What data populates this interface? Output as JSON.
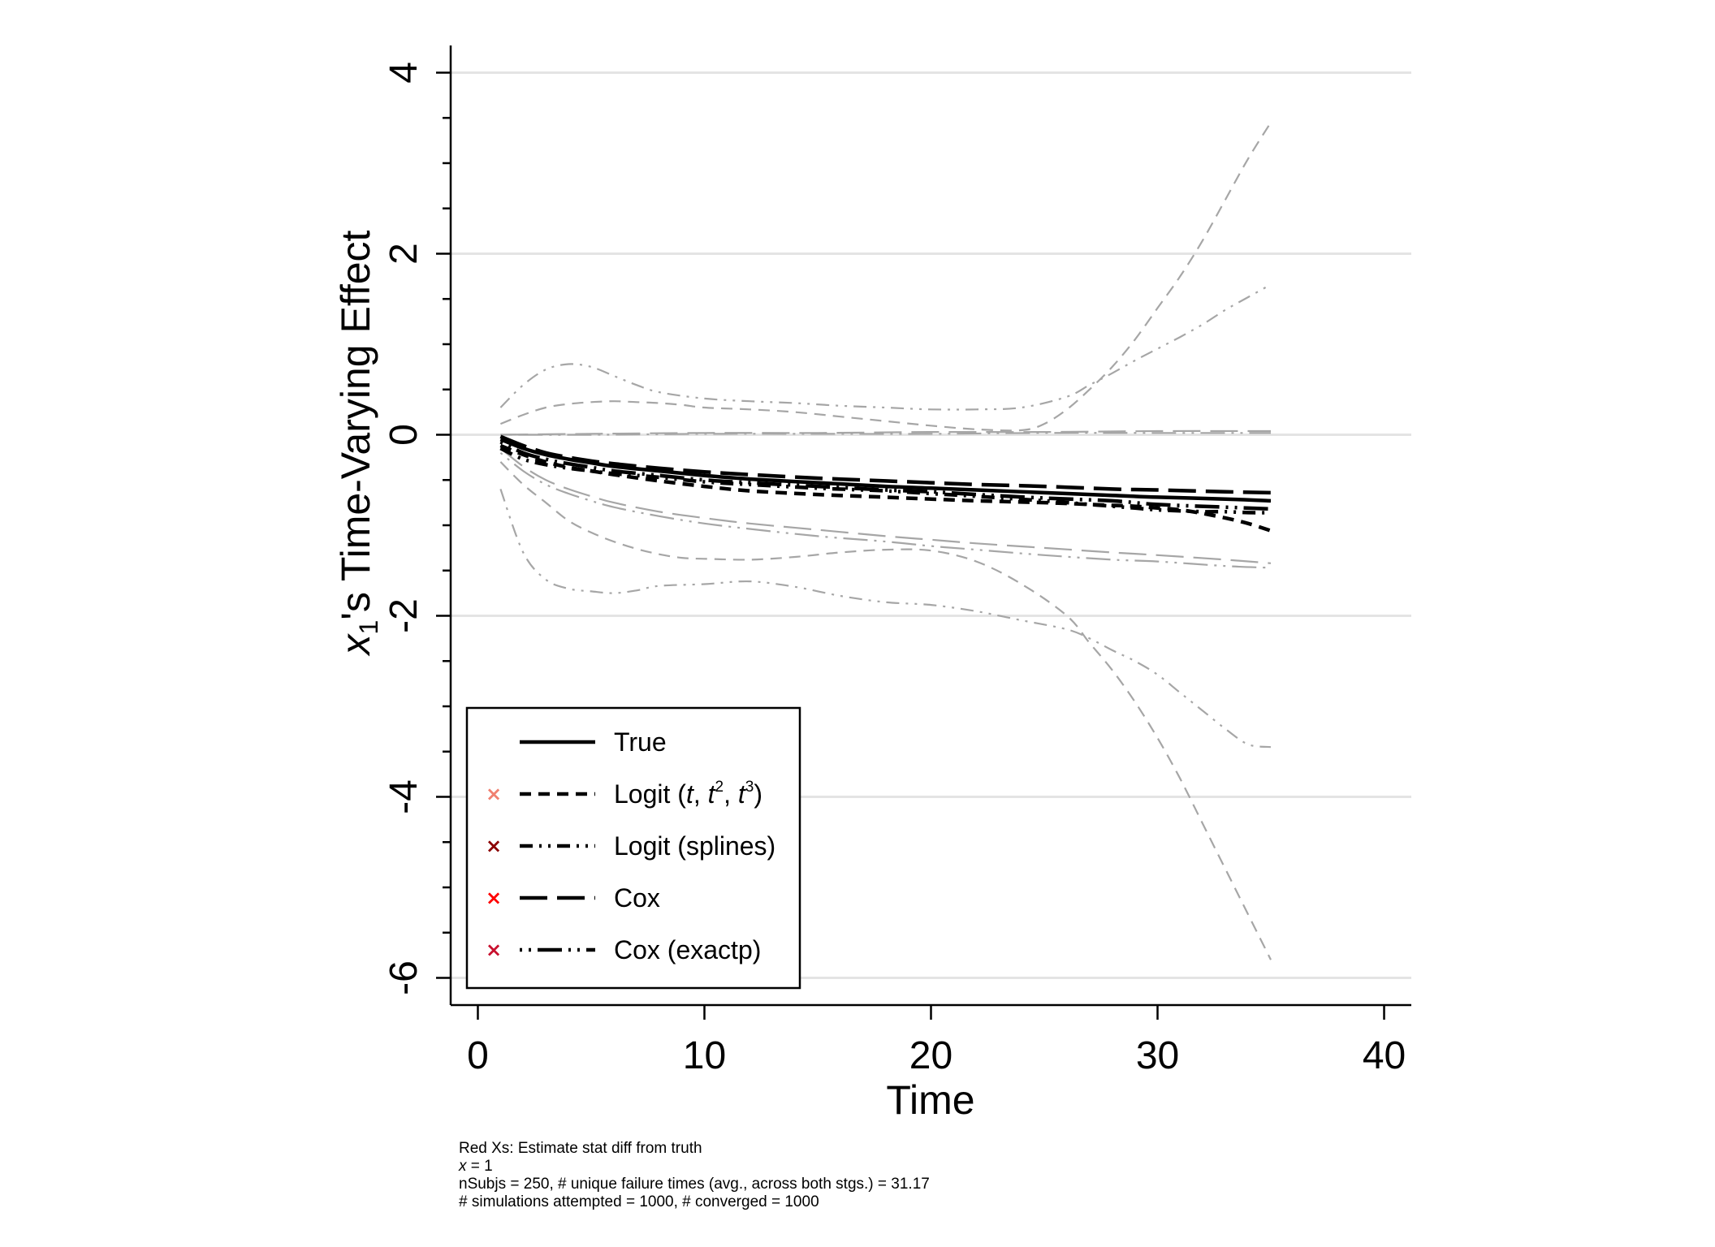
{
  "chart_data": {
    "type": "line",
    "title": "",
    "xlabel": "Time",
    "ylabel": {
      "prefix": "x",
      "subscript": "1",
      "suffix": "'s Time-Varying Effect"
    },
    "xlim": [
      -1.2,
      41.2
    ],
    "ylim": [
      -6.3,
      4.3
    ],
    "xticks": [
      0,
      10,
      20,
      30,
      40
    ],
    "xtick_labels": [
      "0",
      "10",
      "20",
      "30",
      "40"
    ],
    "yticks": [
      -6,
      -4,
      -2,
      0,
      2,
      4
    ],
    "ytick_labels": [
      "-6",
      "-4",
      "-2",
      "0",
      "2",
      "4"
    ],
    "y_minor_step": 0.5,
    "grid": true,
    "legend_position": "bottom-left",
    "series": [
      {
        "id": "ci-logit-upper",
        "style": "short-dash",
        "color": "#a6a6a6",
        "x": [
          1,
          2,
          3,
          4,
          5,
          6,
          7,
          8,
          9,
          10,
          12,
          14,
          16,
          18,
          20,
          22,
          24,
          25,
          26,
          27,
          28,
          29,
          30,
          31,
          32,
          33,
          34,
          35
        ],
        "y": [
          0.12,
          0.22,
          0.3,
          0.34,
          0.36,
          0.37,
          0.36,
          0.35,
          0.33,
          0.3,
          0.28,
          0.25,
          0.2,
          0.15,
          0.1,
          0.06,
          0.05,
          0.12,
          0.28,
          0.5,
          0.75,
          1.05,
          1.4,
          1.75,
          2.15,
          2.6,
          3.05,
          3.45
        ]
      },
      {
        "id": "ci-logit-lower",
        "style": "short-dash",
        "color": "#a6a6a6",
        "x": [
          1,
          2,
          3,
          4,
          5,
          6,
          7,
          8,
          9,
          10,
          12,
          14,
          16,
          18,
          20,
          22,
          24,
          26,
          27,
          28,
          29,
          30,
          31,
          32,
          33,
          34,
          35
        ],
        "y": [
          -0.3,
          -0.55,
          -0.75,
          -0.95,
          -1.08,
          -1.18,
          -1.26,
          -1.32,
          -1.36,
          -1.37,
          -1.38,
          -1.35,
          -1.3,
          -1.27,
          -1.28,
          -1.4,
          -1.65,
          -2.0,
          -2.3,
          -2.6,
          -2.95,
          -3.35,
          -3.8,
          -4.3,
          -4.8,
          -5.3,
          -5.8
        ]
      },
      {
        "id": "ci-splines-upper",
        "style": "dash-dot-dot",
        "color": "#a6a6a6",
        "x": [
          1,
          2,
          3,
          4,
          5,
          6,
          7,
          8,
          10,
          12,
          14,
          16,
          18,
          20,
          22,
          24,
          26,
          27,
          28,
          29,
          30,
          31,
          32,
          33,
          34,
          35
        ],
        "y": [
          0.3,
          0.55,
          0.72,
          0.78,
          0.75,
          0.65,
          0.55,
          0.47,
          0.4,
          0.37,
          0.35,
          0.32,
          0.3,
          0.28,
          0.28,
          0.3,
          0.42,
          0.55,
          0.68,
          0.82,
          0.95,
          1.08,
          1.22,
          1.38,
          1.52,
          1.66
        ]
      },
      {
        "id": "ci-splines-lower",
        "style": "dash-dot-dot",
        "color": "#a6a6a6",
        "x": [
          1,
          2,
          3,
          4,
          5,
          6,
          7,
          8,
          10,
          12,
          14,
          16,
          18,
          20,
          22,
          24,
          26,
          27,
          28,
          29,
          30,
          31,
          32,
          33,
          34,
          35
        ],
        "y": [
          -0.6,
          -1.3,
          -1.6,
          -1.7,
          -1.73,
          -1.75,
          -1.72,
          -1.67,
          -1.65,
          -1.62,
          -1.68,
          -1.78,
          -1.85,
          -1.88,
          -1.95,
          -2.05,
          -2.15,
          -2.25,
          -2.38,
          -2.5,
          -2.65,
          -2.85,
          -3.05,
          -3.25,
          -3.42,
          -3.45
        ]
      },
      {
        "id": "ci-cox-upper",
        "style": "long-dash",
        "color": "#a6a6a6",
        "x": [
          1,
          5,
          10,
          15,
          20,
          25,
          30,
          35
        ],
        "y": [
          0.0,
          0.01,
          0.02,
          0.02,
          0.03,
          0.03,
          0.04,
          0.04
        ]
      },
      {
        "id": "ci-cox-lower",
        "style": "long-dash",
        "color": "#a6a6a6",
        "x": [
          1,
          2,
          3,
          4,
          5,
          6,
          8,
          10,
          12,
          15,
          18,
          20,
          22,
          25,
          28,
          30,
          33,
          35
        ],
        "y": [
          -0.15,
          -0.35,
          -0.5,
          -0.6,
          -0.68,
          -0.75,
          -0.85,
          -0.92,
          -0.98,
          -1.05,
          -1.12,
          -1.16,
          -1.2,
          -1.25,
          -1.3,
          -1.33,
          -1.38,
          -1.42
        ]
      },
      {
        "id": "ci-coxexact-upper",
        "style": "dot-longdash",
        "color": "#a6a6a6",
        "x": [
          1,
          5,
          10,
          15,
          20,
          25,
          30,
          35
        ],
        "y": [
          0.0,
          0.0,
          0.01,
          0.01,
          0.01,
          0.02,
          0.02,
          0.02
        ]
      },
      {
        "id": "ci-coxexact-lower",
        "style": "dot-longdash",
        "color": "#a6a6a6",
        "x": [
          1,
          2,
          3,
          4,
          5,
          6,
          8,
          10,
          12,
          15,
          18,
          20,
          22,
          25,
          28,
          30,
          33,
          35
        ],
        "y": [
          -0.2,
          -0.4,
          -0.55,
          -0.65,
          -0.73,
          -0.8,
          -0.9,
          -0.98,
          -1.04,
          -1.12,
          -1.18,
          -1.23,
          -1.27,
          -1.33,
          -1.38,
          -1.4,
          -1.45,
          -1.47
        ]
      },
      {
        "id": "cox-exactp",
        "name": "Cox (exactp)",
        "style": "dot-longdash",
        "color": "#000000",
        "x": [
          1,
          2,
          3,
          4,
          5,
          6,
          8,
          10,
          12,
          15,
          18,
          20,
          22,
          25,
          28,
          30,
          33,
          35
        ],
        "y": [
          -0.08,
          -0.2,
          -0.27,
          -0.32,
          -0.36,
          -0.4,
          -0.45,
          -0.5,
          -0.53,
          -0.57,
          -0.61,
          -0.63,
          -0.66,
          -0.7,
          -0.73,
          -0.77,
          -0.8,
          -0.82
        ]
      },
      {
        "id": "cox",
        "name": "Cox",
        "style": "long-dash",
        "color": "#000000",
        "x": [
          1,
          2,
          3,
          4,
          5,
          6,
          8,
          10,
          12,
          15,
          18,
          20,
          22,
          25,
          28,
          30,
          33,
          35
        ],
        "y": [
          -0.02,
          -0.12,
          -0.2,
          -0.25,
          -0.29,
          -0.32,
          -0.37,
          -0.41,
          -0.44,
          -0.48,
          -0.51,
          -0.53,
          -0.55,
          -0.57,
          -0.6,
          -0.61,
          -0.63,
          -0.64
        ]
      },
      {
        "id": "logit-splines",
        "name": "Logit (splines)",
        "style": "dash-dot-dot",
        "color": "#000000",
        "x": [
          1,
          2,
          3,
          4,
          5,
          6,
          8,
          10,
          12,
          15,
          18,
          20,
          22,
          25,
          27,
          28,
          29,
          30,
          31,
          32,
          33,
          34,
          35
        ],
        "y": [
          -0.15,
          -0.27,
          -0.33,
          -0.37,
          -0.4,
          -0.43,
          -0.47,
          -0.52,
          -0.55,
          -0.59,
          -0.62,
          -0.65,
          -0.68,
          -0.73,
          -0.77,
          -0.79,
          -0.81,
          -0.83,
          -0.84,
          -0.85,
          -0.85,
          -0.86,
          -0.86
        ]
      },
      {
        "id": "logit-poly",
        "name": "Logit (t, t², t³)",
        "style": "short-dash",
        "color": "#000000",
        "x": [
          1,
          2,
          3,
          4,
          5,
          6,
          8,
          10,
          12,
          15,
          18,
          20,
          22,
          25,
          27,
          28,
          29,
          30,
          31,
          32,
          33,
          34,
          35
        ],
        "y": [
          -0.12,
          -0.22,
          -0.3,
          -0.36,
          -0.4,
          -0.44,
          -0.51,
          -0.57,
          -0.62,
          -0.66,
          -0.69,
          -0.71,
          -0.73,
          -0.75,
          -0.77,
          -0.78,
          -0.79,
          -0.81,
          -0.83,
          -0.87,
          -0.92,
          -0.98,
          -1.06
        ]
      },
      {
        "id": "true",
        "name": "True",
        "style": "solid",
        "color": "#000000",
        "x": [
          1,
          2,
          3,
          4,
          5,
          6,
          8,
          10,
          12,
          15,
          18,
          20,
          22,
          25,
          28,
          30,
          33,
          35
        ],
        "y": [
          -0.05,
          -0.15,
          -0.22,
          -0.27,
          -0.31,
          -0.35,
          -0.4,
          -0.45,
          -0.49,
          -0.53,
          -0.57,
          -0.59,
          -0.61,
          -0.64,
          -0.67,
          -0.69,
          -0.71,
          -0.73
        ]
      }
    ],
    "legend": {
      "items": [
        {
          "series": "true",
          "label": "True",
          "marker_color": null
        },
        {
          "series": "logit-poly",
          "label": "Logit (t, t², t³)",
          "marker_color": "#f08070",
          "rich": {
            "a": "Logit (",
            "t1": "t",
            "c1": ", ",
            "t2": "t",
            "s2": "2",
            "c2": ", ",
            "t3": "t",
            "s3": "3",
            "z": ")"
          }
        },
        {
          "series": "logit-splines",
          "label": "Logit (splines)",
          "marker_color": "#8b0000"
        },
        {
          "series": "cox",
          "label": "Cox",
          "marker_color": "#ff0000"
        },
        {
          "series": "cox-exactp",
          "label": "Cox (exactp)",
          "marker_color": "#c8102e"
        }
      ]
    },
    "notes": {
      "line1": "Red Xs: Estimate stat diff from truth",
      "line2_var": "x",
      "line2_rest": " = 1",
      "line3": "nSubjs = 250, # unique failure times (avg., across both stgs.) = 31.17",
      "line4": "# simulations attempted = 1000, # converged = 1000"
    },
    "colors": {
      "grid": "#e4e4e4",
      "axis": "#000000",
      "ci": "#a6a6a6",
      "estimate": "#000000"
    }
  }
}
